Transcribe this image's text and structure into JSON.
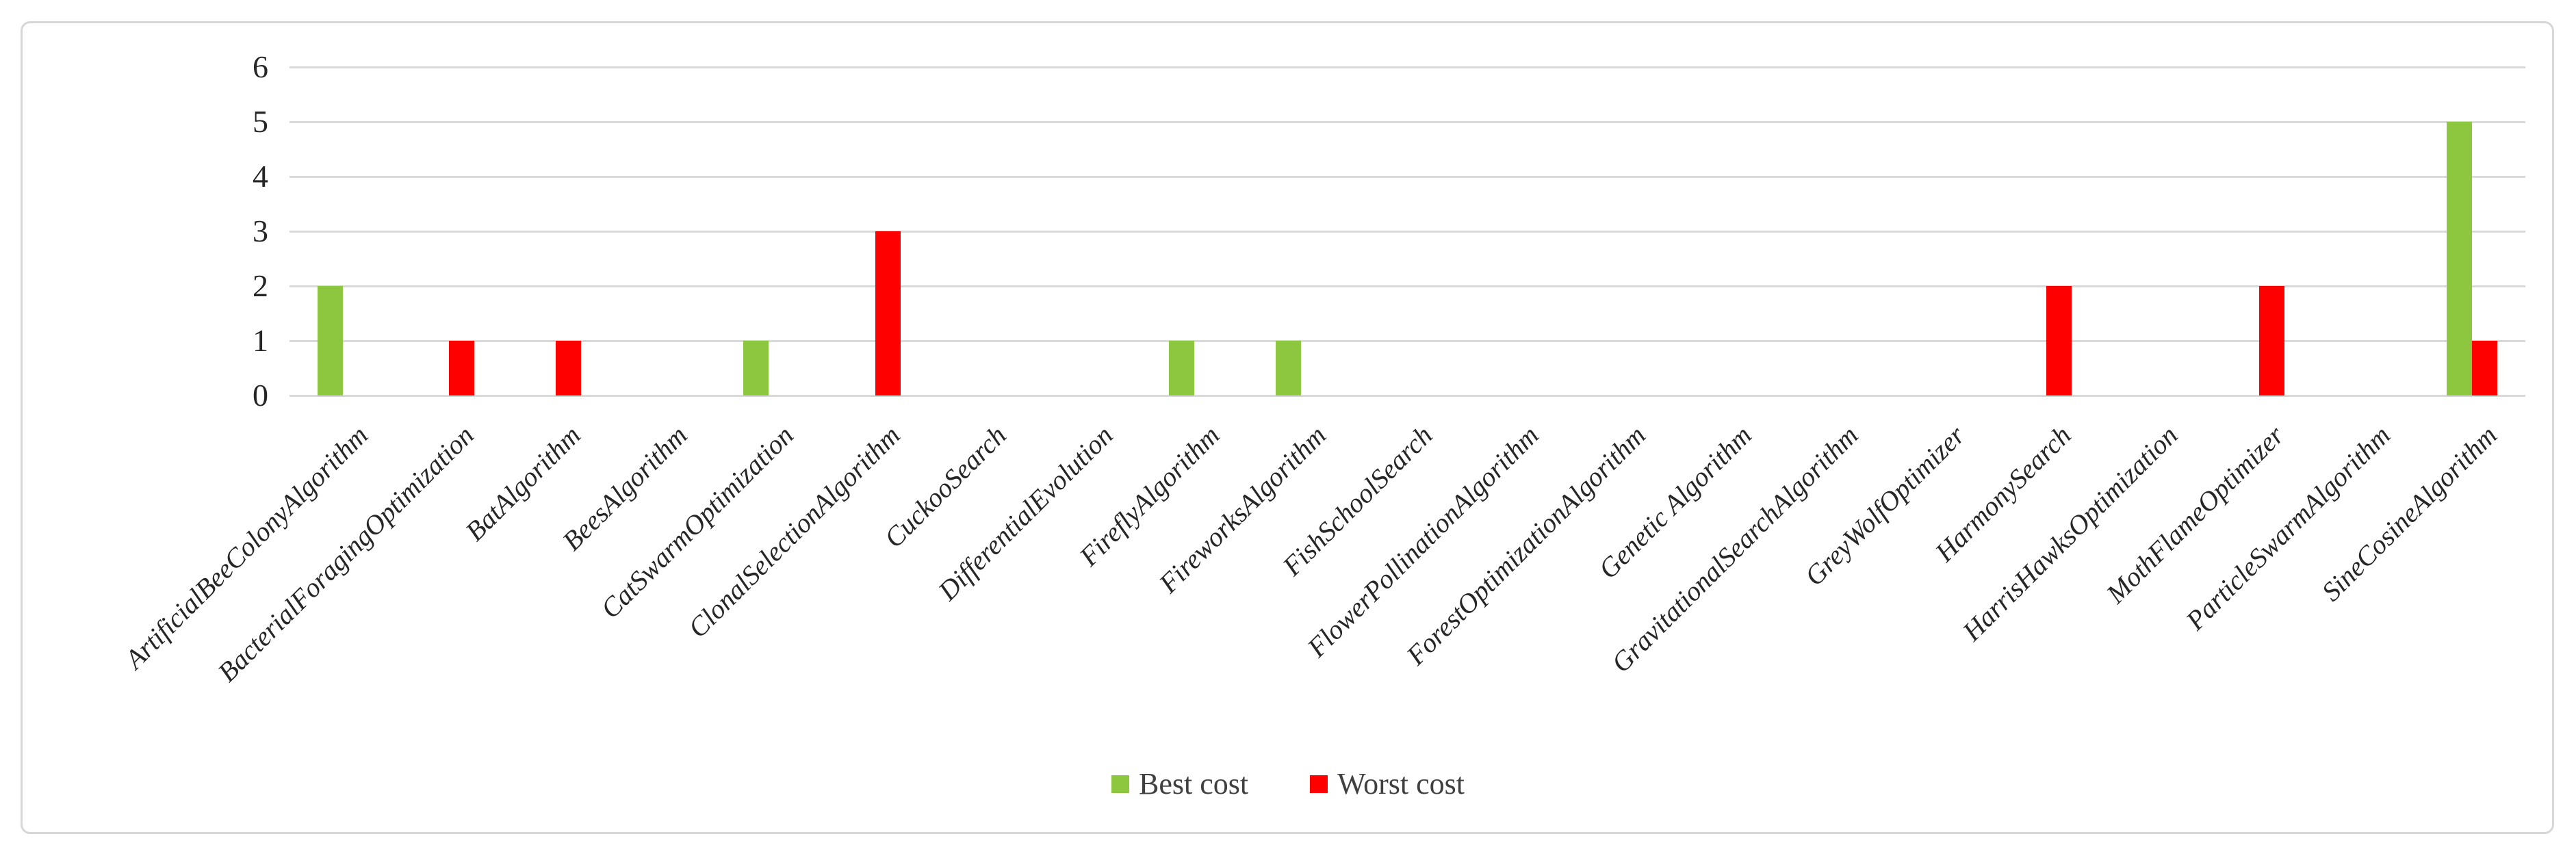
{
  "chart_data": {
    "type": "bar",
    "title": "",
    "xlabel": "",
    "ylabel": "",
    "ylim": [
      0,
      6
    ],
    "yticks": [
      0,
      1,
      2,
      3,
      4,
      5,
      6
    ],
    "grid": true,
    "legend_position": "bottom",
    "categories": [
      "ArtificialBeeColonyAlgorithm",
      "BacterialForagingOptimization",
      "BatAlgorithm",
      "BeesAlgorithm",
      "CatSwarmOptimization",
      "ClonalSelectionAlgorithm",
      "CuckooSearch",
      "DifferentialEvolution",
      "FireflyAlgorithm",
      "FireworksAlgorithm",
      "FishSchoolSearch",
      "FlowerPollinationAlgorithm",
      "ForestOptimizationAlgorithm",
      "Genetic Algorithm",
      "GravitationalSearchAlgorithm",
      "GreyWolfOptimizer",
      "HarmonySearch",
      "HarrisHawksOptimization",
      "MothFlameOptimizer",
      "ParticleSwarmAlgorithm",
      "SineCosineAlgorithm"
    ],
    "series": [
      {
        "name": "Best cost",
        "color": "#8dc63f",
        "values": [
          2,
          0,
          0,
          0,
          1,
          0,
          0,
          0,
          1,
          1,
          0,
          0,
          0,
          0,
          0,
          0,
          0,
          0,
          0,
          0,
          5
        ]
      },
      {
        "name": "Worst cost",
        "color": "#ff0000",
        "values": [
          0,
          1,
          1,
          0,
          0,
          3,
          0,
          0,
          0,
          0,
          0,
          0,
          0,
          0,
          0,
          0,
          2,
          0,
          2,
          0,
          1
        ]
      }
    ]
  }
}
